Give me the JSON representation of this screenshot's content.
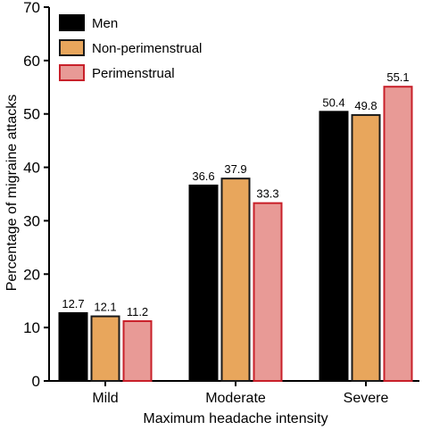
{
  "chart_data": {
    "type": "bar",
    "xlabel": "Maximum headache intensity",
    "ylabel": "Percentage of migraine attacks",
    "ylim": [
      0,
      70
    ],
    "yticks": [
      0,
      10,
      20,
      30,
      40,
      50,
      60,
      70
    ],
    "categories": [
      "Mild",
      "Moderate",
      "Severe"
    ],
    "legend_position": "top-left",
    "grid": false,
    "series": [
      {
        "name": "Men",
        "values": [
          12.7,
          36.6,
          50.4
        ],
        "labels": [
          "12.7",
          "36.6",
          "50.4"
        ],
        "fill": "#000000",
        "stroke": "#000000"
      },
      {
        "name": "Non-perimenstrual",
        "values": [
          12.1,
          37.9,
          49.8
        ],
        "labels": [
          "12.1",
          "37.9",
          "49.8"
        ],
        "fill": "#e8a65c",
        "stroke": "#1a1a1a"
      },
      {
        "name": "Perimenstrual",
        "values": [
          11.2,
          33.3,
          55.1
        ],
        "labels": [
          "11.2",
          "33.3",
          "55.1"
        ],
        "fill": "#e89a96",
        "stroke": "#c8202a"
      }
    ]
  }
}
